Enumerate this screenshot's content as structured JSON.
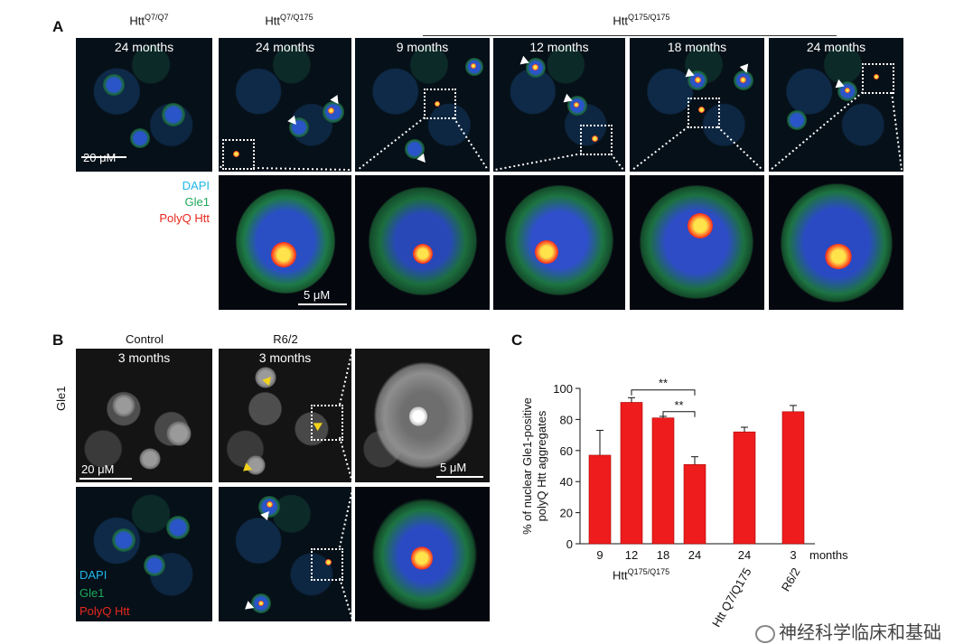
{
  "panel_a": {
    "letter": "A",
    "headers": [
      {
        "base": "Htt",
        "sup": "Q7/Q7"
      },
      {
        "base": "Htt",
        "sup": "Q7/Q175"
      },
      {
        "base": "Htt",
        "sup": "Q175/Q175"
      }
    ],
    "tiles": [
      "24 months",
      "24 months",
      "9 months",
      "12 months",
      "18 months",
      "24 months"
    ],
    "scale_top": "20 μM",
    "scale_bottom": "5 μM",
    "legend": {
      "dapi": "DAPI",
      "gle1": "Gle1",
      "polyq": "PolyQ Htt"
    },
    "legend_colors": {
      "dapi": "#1fb6e6",
      "gle1": "#1ea85a",
      "polyq": "#e8281e"
    }
  },
  "panel_b": {
    "letter": "B",
    "headers": [
      "Control",
      "R6/2"
    ],
    "tiles": [
      "3 months",
      "3 months"
    ],
    "side_label": "Gle1",
    "scale_left": "20 μM",
    "scale_right": "5 μM",
    "legend": {
      "dapi": "DAPI",
      "gle1": "Gle1",
      "polyq": "PolyQ Htt"
    }
  },
  "panel_c": {
    "letter": "C",
    "group_label": {
      "base": "Htt",
      "sup": "Q175/Q175"
    },
    "x_unit": "months",
    "rot_labels": [
      "Htt Q7/Q175",
      "R6/2"
    ]
  },
  "chart_data": {
    "type": "bar",
    "categories": [
      "9",
      "12",
      "18",
      "24",
      "24",
      "3"
    ],
    "values": [
      57,
      91,
      81,
      51,
      72,
      85
    ],
    "errors": [
      16,
      3,
      1,
      5,
      3,
      4
    ],
    "ylabel": "% of nuclear Gle1-positive polyQ Htt aggregates",
    "ylim": [
      0,
      100
    ],
    "yticks": [
      "0",
      "20",
      "40",
      "60",
      "80",
      "100"
    ],
    "bar_color": "#ee1c1c",
    "significance": [
      {
        "from": "12",
        "to": "24",
        "label": "**"
      },
      {
        "from": "18",
        "to": "24",
        "label": "**"
      }
    ]
  },
  "watermark": "神经科学临床和基础"
}
